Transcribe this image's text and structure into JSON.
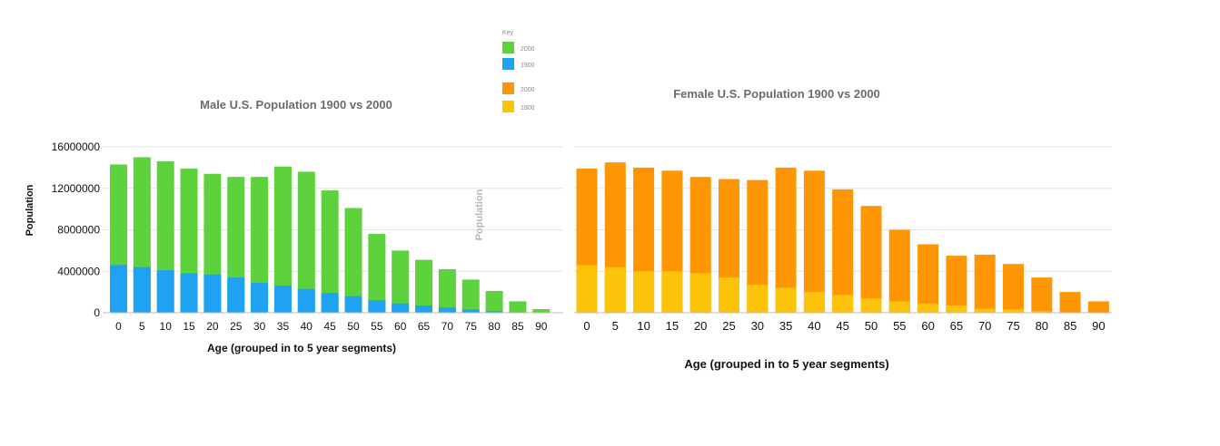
{
  "colors": {
    "male_2000": "#5dd23c",
    "male_1900": "#1ea2f1",
    "female_2000": "#fe9603",
    "female_1900": "#fbc30a",
    "grid": "#e3e3e3",
    "axis": "#bdbdbd",
    "title_text": "#6b6b6b",
    "legend_text": "#8a8a8a",
    "label_text": "#111111"
  },
  "legend": {
    "title": "Key",
    "items": [
      {
        "label": "2000",
        "color": "#5dd23c"
      },
      {
        "label": "1900",
        "color": "#1ea2f1"
      },
      {
        "label": "2000",
        "color": "#fe9603"
      },
      {
        "label": "1900",
        "color": "#fbc30a"
      }
    ]
  },
  "chart_data": [
    {
      "type": "bar",
      "stacked": false,
      "title": "Male U.S. Population 1900 vs 2000",
      "xlabel": "Age (grouped in to 5 year segments)",
      "ylabel": "Population",
      "ylim": [
        0,
        16000000
      ],
      "yticks": [
        "0",
        "4000000",
        "8000000",
        "12000000",
        "16000000"
      ],
      "grid": true,
      "categories": [
        "0",
        "5",
        "10",
        "15",
        "20",
        "25",
        "30",
        "35",
        "40",
        "45",
        "50",
        "55",
        "60",
        "65",
        "70",
        "75",
        "80",
        "85",
        "90"
      ],
      "series": [
        {
          "name": "2000",
          "color": "#5dd23c",
          "values": [
            14300000,
            15000000,
            14600000,
            13900000,
            13400000,
            13100000,
            13100000,
            14100000,
            13600000,
            11800000,
            10100000,
            7600000,
            6000000,
            5100000,
            4200000,
            3200000,
            2100000,
            1100000,
            350000
          ]
        },
        {
          "name": "1900",
          "color": "#1ea2f1",
          "values": [
            4600000,
            4400000,
            4100000,
            3800000,
            3700000,
            3400000,
            2900000,
            2600000,
            2300000,
            1900000,
            1600000,
            1200000,
            900000,
            700000,
            500000,
            300000,
            150000,
            50000,
            20000
          ]
        }
      ]
    },
    {
      "type": "bar",
      "stacked": false,
      "title": "Female U.S. Population 1900 vs 2000",
      "xlabel": "Age (grouped in to 5 year segments)",
      "ylabel": "Population",
      "ylim": [
        0,
        16000000
      ],
      "grid": true,
      "categories": [
        "0",
        "5",
        "10",
        "15",
        "20",
        "25",
        "30",
        "35",
        "40",
        "45",
        "50",
        "55",
        "60",
        "65",
        "70",
        "75",
        "80",
        "85",
        "90"
      ],
      "series": [
        {
          "name": "2000",
          "color": "#fe9603",
          "values": [
            13900000,
            14500000,
            14000000,
            13700000,
            13100000,
            12900000,
            12800000,
            14000000,
            13700000,
            11900000,
            10300000,
            8000000,
            6600000,
            5500000,
            5600000,
            4700000,
            3400000,
            2000000,
            1100000
          ]
        },
        {
          "name": "1900",
          "color": "#fbc30a",
          "values": [
            4600000,
            4400000,
            4000000,
            4000000,
            3800000,
            3400000,
            2700000,
            2400000,
            2000000,
            1700000,
            1400000,
            1100000,
            900000,
            700000,
            400000,
            300000,
            150000,
            50000,
            20000
          ]
        }
      ]
    }
  ]
}
